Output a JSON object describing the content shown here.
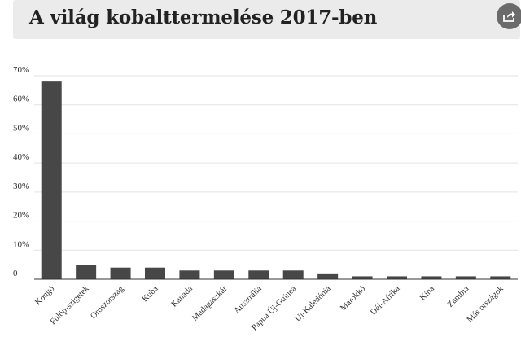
{
  "header": {
    "title": "A világ kobalttermelése 2017-ben",
    "share_icon": "share-icon",
    "background": "#ebebeb"
  },
  "chart_data": {
    "type": "bar",
    "title": "A világ kobalttermelése 2017-ben",
    "xlabel": "",
    "ylabel": "",
    "categories": [
      "Kongó",
      "Fülöp-szigetek",
      "Oroszország",
      "Kuba",
      "Kanada",
      "Madagaszkár",
      "Ausztrália",
      "Pápua Új-Guinea",
      "Új-Kaledónia",
      "Marokkó",
      "Dél-Afrika",
      "Kína",
      "Zambia",
      "Más országok"
    ],
    "values": [
      68,
      5,
      4,
      4,
      3,
      3,
      3,
      3,
      2,
      1,
      1,
      1,
      1,
      1
    ],
    "ylim": [
      0,
      70
    ],
    "yticks": [
      0,
      10,
      20,
      30,
      40,
      50,
      60,
      70
    ],
    "ytick_labels": [
      "0",
      "10%",
      "20%",
      "30%",
      "40%",
      "50%",
      "60%",
      "70%"
    ],
    "grid": true,
    "bar_color": "#474747",
    "grid_color": "#e3e3e3"
  }
}
